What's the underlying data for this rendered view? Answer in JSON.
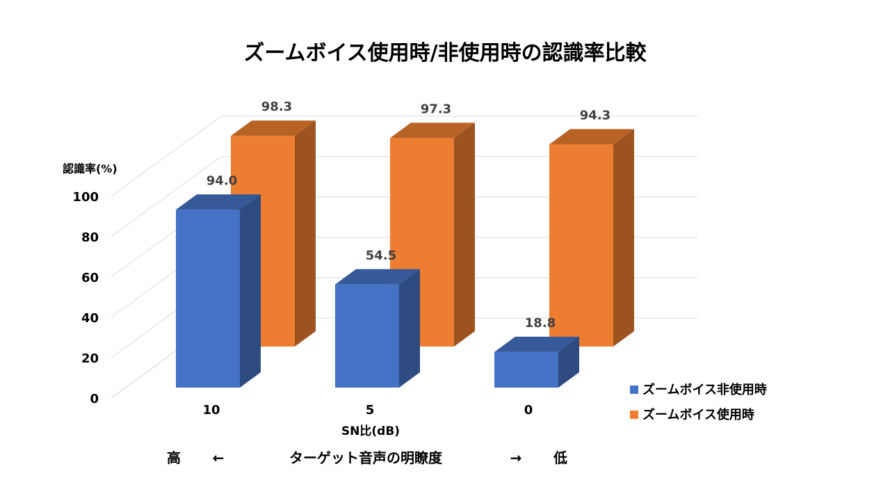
{
  "chart_data": {
    "type": "bar",
    "title": "ズームボイス使用時/非使用時の認識率比較",
    "ylabel": "認識率(%)",
    "xlabel": "SN比(dB)",
    "categories": [
      "10",
      "5",
      "0"
    ],
    "ylim": [
      0,
      100
    ],
    "yticks": [
      "0",
      "20",
      "40",
      "60",
      "80",
      "100"
    ],
    "series": [
      {
        "name": "ズームボイス非使用時",
        "values": [
          94.0,
          54.5,
          18.8
        ],
        "labels": [
          "94.0",
          "54.5",
          "18.8"
        ],
        "color": "#4472C4"
      },
      {
        "name": "ズームボイス使用時",
        "values": [
          98.3,
          97.3,
          94.3
        ],
        "labels": [
          "98.3",
          "97.3",
          "94.3"
        ],
        "color": "#ED7D31"
      }
    ],
    "legend_position": "bottom-right",
    "grid": true
  },
  "caption": {
    "left": "高",
    "left_arrow": "←",
    "center": "ターゲット音声の明瞭度",
    "right_arrow": "→",
    "right": "低"
  }
}
